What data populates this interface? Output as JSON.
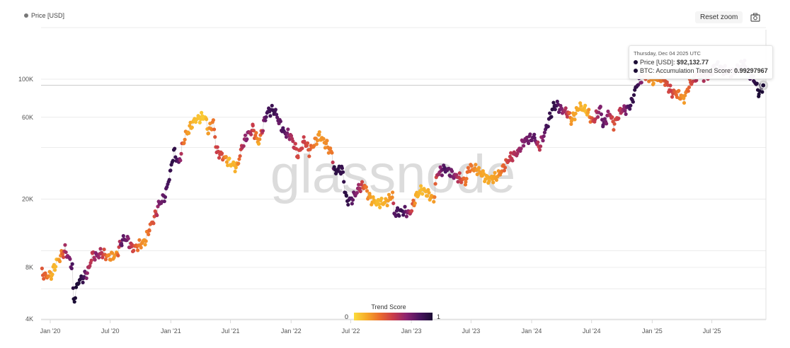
{
  "legend_label": "Price [USD]",
  "reset_zoom": "Reset zoom",
  "camera_icon": "camera-icon",
  "watermark": "glassnode",
  "tooltip": {
    "date": "Thursday, Dec 04 2025 UTC",
    "price_label": "Price [USD]: ",
    "price_value": "$92,132.77",
    "score_label": "BTC: Accumulation Trend Score: ",
    "score_value": "0.99297967"
  },
  "colorbar": {
    "title": "Trend Score",
    "min_label": "0",
    "max_label": "1",
    "colors": [
      "#fbdc3c",
      "#f6a828",
      "#ea6b2d",
      "#c93c4a",
      "#8c2470",
      "#4b1560",
      "#1b0c35"
    ]
  },
  "chart_data": {
    "type": "scatter",
    "title": "",
    "xlabel": "",
    "ylabel": "Price (USD)",
    "yscale": "log",
    "ylim": [
      4000,
      230000
    ],
    "xlim": [
      "2019-12-01",
      "2025-12-08"
    ],
    "y_ticks": [
      {
        "v": 4000,
        "label": "4K"
      },
      {
        "v": 8000,
        "label": "8K"
      },
      {
        "v": 20000,
        "label": "20K"
      },
      {
        "v": 60000,
        "label": "60K"
      },
      {
        "v": 100000,
        "label": "100K"
      }
    ],
    "y_grid": [
      4000,
      6000,
      8000,
      10000,
      20000,
      40000,
      60000,
      100000,
      200000
    ],
    "x_ticks": [
      {
        "d": "2020-01-01",
        "label": "Jan '20"
      },
      {
        "d": "2020-07-01",
        "label": "Jul '20"
      },
      {
        "d": "2021-01-01",
        "label": "Jan '21"
      },
      {
        "d": "2021-07-01",
        "label": "Jul '21"
      },
      {
        "d": "2022-01-01",
        "label": "Jan '22"
      },
      {
        "d": "2022-07-01",
        "label": "Jul '22"
      },
      {
        "d": "2023-01-01",
        "label": "Jan '23"
      },
      {
        "d": "2023-07-01",
        "label": "Jul '23"
      },
      {
        "d": "2024-01-01",
        "label": "Jan '24"
      },
      {
        "d": "2024-07-01",
        "label": "Jul '24"
      },
      {
        "d": "2025-01-01",
        "label": "Jan '25"
      },
      {
        "d": "2025-07-01",
        "label": "Jul '25"
      }
    ],
    "series": [
      {
        "name": "Price [USD]",
        "points": [
          [
            "2019-12-07",
            7400,
            0.4
          ],
          [
            "2019-12-20",
            7100,
            0.35
          ],
          [
            "2020-01-05",
            7300,
            0.15
          ],
          [
            "2020-01-20",
            8600,
            0.1
          ],
          [
            "2020-02-05",
            9400,
            0.3
          ],
          [
            "2020-02-15",
            10100,
            0.6
          ],
          [
            "2020-03-01",
            8700,
            0.7
          ],
          [
            "2020-03-08",
            8000,
            0.85
          ],
          [
            "2020-03-12",
            5000,
            1.0
          ],
          [
            "2020-03-25",
            6600,
            1.0
          ],
          [
            "2020-04-10",
            7000,
            0.9
          ],
          [
            "2020-04-25",
            7600,
            0.6
          ],
          [
            "2020-05-08",
            9500,
            0.5
          ],
          [
            "2020-05-20",
            9300,
            0.7
          ],
          [
            "2020-06-05",
            9700,
            0.55
          ],
          [
            "2020-06-25",
            9200,
            0.25
          ],
          [
            "2020-07-20",
            9400,
            0.2
          ],
          [
            "2020-08-05",
            11500,
            0.8
          ],
          [
            "2020-08-20",
            11800,
            0.75
          ],
          [
            "2020-09-05",
            10300,
            0.5
          ],
          [
            "2020-09-25",
            10700,
            0.3
          ],
          [
            "2020-10-15",
            11400,
            0.2
          ],
          [
            "2020-10-28",
            13500,
            0.35
          ],
          [
            "2020-11-15",
            16000,
            0.45
          ],
          [
            "2020-11-25",
            18500,
            0.7
          ],
          [
            "2020-12-15",
            21000,
            0.8
          ],
          [
            "2020-12-31",
            29000,
            0.9
          ],
          [
            "2021-01-10",
            38000,
            0.95
          ],
          [
            "2021-01-25",
            32000,
            0.8
          ],
          [
            "2021-02-10",
            45000,
            0.3
          ],
          [
            "2021-02-22",
            50000,
            0.2
          ],
          [
            "2021-03-15",
            58000,
            0.1
          ],
          [
            "2021-04-14",
            61000,
            0.05
          ],
          [
            "2021-04-25",
            50000,
            0.2
          ],
          [
            "2021-05-10",
            56000,
            0.3
          ],
          [
            "2021-05-20",
            38000,
            0.5
          ],
          [
            "2021-06-05",
            36000,
            0.45
          ],
          [
            "2021-06-25",
            33000,
            0.1
          ],
          [
            "2021-07-20",
            30500,
            0.15
          ],
          [
            "2021-08-05",
            40000,
            0.55
          ],
          [
            "2021-08-20",
            47000,
            0.7
          ],
          [
            "2021-09-07",
            51000,
            0.5
          ],
          [
            "2021-09-25",
            42500,
            0.15
          ],
          [
            "2021-10-10",
            55000,
            0.7
          ],
          [
            "2021-10-20",
            64000,
            0.85
          ],
          [
            "2021-11-10",
            67000,
            0.9
          ],
          [
            "2021-11-25",
            57000,
            0.75
          ],
          [
            "2021-12-10",
            49000,
            0.85
          ],
          [
            "2021-12-30",
            47000,
            0.6
          ],
          [
            "2022-01-22",
            36000,
            0.45
          ],
          [
            "2022-02-10",
            44000,
            0.5
          ],
          [
            "2022-02-25",
            38000,
            0.4
          ],
          [
            "2022-03-28",
            47000,
            0.2
          ],
          [
            "2022-04-20",
            41000,
            0.25
          ],
          [
            "2022-05-05",
            37000,
            0.3
          ],
          [
            "2022-05-12",
            29000,
            0.95
          ],
          [
            "2022-06-05",
            30000,
            0.9
          ],
          [
            "2022-06-18",
            19500,
            0.95
          ],
          [
            "2022-07-05",
            20000,
            0.8
          ],
          [
            "2022-07-28",
            23500,
            0.6
          ],
          [
            "2022-08-12",
            24000,
            0.35
          ],
          [
            "2022-08-28",
            20000,
            0.2
          ],
          [
            "2022-09-20",
            19000,
            0.1
          ],
          [
            "2022-10-15",
            19200,
            0.15
          ],
          [
            "2022-11-05",
            21000,
            0.25
          ],
          [
            "2022-11-10",
            16500,
            0.8
          ],
          [
            "2022-12-05",
            17000,
            0.9
          ],
          [
            "2022-12-28",
            16600,
            0.6
          ],
          [
            "2023-01-15",
            20500,
            0.15
          ],
          [
            "2023-02-01",
            23000,
            0.1
          ],
          [
            "2023-03-10",
            20000,
            0.2
          ],
          [
            "2023-03-20",
            28000,
            0.55
          ],
          [
            "2023-04-12",
            30300,
            0.85
          ],
          [
            "2023-05-10",
            27500,
            0.7
          ],
          [
            "2023-06-15",
            25500,
            0.3
          ],
          [
            "2023-06-25",
            30500,
            0.35
          ],
          [
            "2023-07-20",
            29800,
            0.2
          ],
          [
            "2023-08-20",
            26000,
            0.15
          ],
          [
            "2023-09-20",
            27000,
            0.2
          ],
          [
            "2023-10-25",
            34500,
            0.5
          ],
          [
            "2023-11-20",
            37500,
            0.6
          ],
          [
            "2023-12-10",
            44000,
            0.7
          ],
          [
            "2024-01-10",
            46000,
            0.8
          ],
          [
            "2024-01-23",
            39500,
            0.5
          ],
          [
            "2024-02-15",
            52000,
            0.85
          ],
          [
            "2024-03-05",
            67000,
            0.95
          ],
          [
            "2024-03-14",
            72000,
            0.9
          ],
          [
            "2024-04-01",
            66000,
            0.7
          ],
          [
            "2024-04-20",
            64000,
            0.5
          ],
          [
            "2024-05-01",
            58000,
            0.2
          ],
          [
            "2024-05-25",
            69000,
            0.15
          ],
          [
            "2024-06-15",
            66000,
            0.1
          ],
          [
            "2024-07-05",
            56500,
            0.45
          ],
          [
            "2024-07-28",
            68000,
            0.7
          ],
          [
            "2024-08-05",
            54000,
            0.8
          ],
          [
            "2024-08-25",
            64000,
            0.6
          ],
          [
            "2024-09-06",
            54000,
            0.4
          ],
          [
            "2024-09-28",
            65500,
            0.55
          ],
          [
            "2024-10-15",
            67000,
            0.75
          ],
          [
            "2024-10-30",
            72000,
            0.9
          ],
          [
            "2024-11-12",
            89000,
            0.95
          ],
          [
            "2024-11-22",
            98000,
            0.85
          ],
          [
            "2024-12-17",
            106000,
            0.3
          ],
          [
            "2025-01-05",
            96000,
            0.2
          ],
          [
            "2025-01-20",
            104000,
            0.25
          ],
          [
            "2025-02-10",
            97000,
            0.4
          ],
          [
            "2025-02-28",
            84000,
            0.5
          ],
          [
            "2025-03-15",
            83000,
            0.35
          ],
          [
            "2025-04-08",
            77000,
            0.2
          ],
          [
            "2025-04-25",
            94000,
            0.4
          ],
          [
            "2025-05-20",
            106000,
            0.6
          ],
          [
            "2025-06-20",
            103000,
            0.55
          ],
          [
            "2025-07-14",
            120000,
            0.8
          ],
          [
            "2025-08-05",
            114000,
            0.75
          ],
          [
            "2025-08-30",
            108000,
            0.7
          ],
          [
            "2025-09-20",
            115000,
            0.75
          ],
          [
            "2025-10-06",
            123000,
            0.8
          ],
          [
            "2025-10-20",
            108000,
            0.85
          ],
          [
            "2025-11-05",
            101000,
            0.9
          ],
          [
            "2025-11-21",
            84000,
            1.0
          ],
          [
            "2025-12-04",
            92132.77,
            0.99
          ]
        ]
      }
    ]
  }
}
